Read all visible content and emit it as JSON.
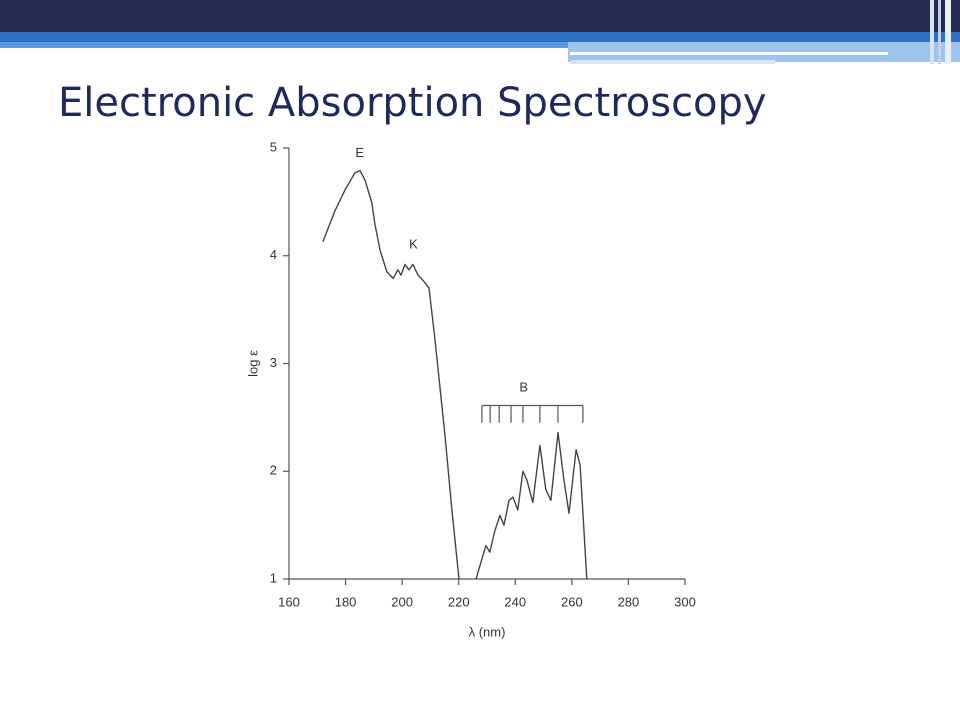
{
  "title": "Electronic Absorption Spectroscopy",
  "chart_data": {
    "type": "line",
    "x_label": "λ (nm)",
    "y_label": "log ε",
    "xlim": [
      160,
      300
    ],
    "xticks": [
      160,
      180,
      200,
      220,
      240,
      260,
      280,
      300
    ],
    "ylim": [
      1,
      5
    ],
    "yticks": [
      1,
      2,
      3,
      4,
      5
    ],
    "series": [
      {
        "color": "#444444",
        "x": [
          172,
          176.3,
          179.8,
          183.3,
          185.1,
          186.9,
          189.3,
          190.4,
          192.2,
          194.6,
          196.8,
          198.5,
          199.6,
          201,
          202.4,
          203.8,
          205.6,
          207.4,
          209.5,
          211.6,
          215.1,
          217.6,
          220.1,
          null,
          226.1,
          228.6,
          229.6,
          231,
          232.8,
          234.6,
          236,
          237.8,
          239.2,
          240.9,
          242.7,
          244.1,
          246.2,
          248.7,
          250.8,
          252.6,
          255.1,
          257.2,
          259,
          261.5,
          262.9,
          265.3
        ],
        "values": [
          4.13,
          4.42,
          4.61,
          4.77,
          4.79,
          4.7,
          4.49,
          4.29,
          4.05,
          3.85,
          3.79,
          3.87,
          3.82,
          3.92,
          3.87,
          3.92,
          3.82,
          3.77,
          3.7,
          3.22,
          2.34,
          1.64,
          1,
          null,
          1,
          1.22,
          1.31,
          1.25,
          1.45,
          1.59,
          1.5,
          1.73,
          1.76,
          1.64,
          2,
          1.92,
          1.71,
          2.24,
          1.83,
          1.73,
          2.36,
          1.92,
          1.61,
          2.2,
          2.06,
          1
        ]
      }
    ],
    "annotations": [
      {
        "text": "E",
        "x": 185,
        "y": 4.95
      },
      {
        "text": "K",
        "x": 204,
        "y": 4.1
      },
      {
        "text": "B",
        "x": 243,
        "y": 2.77,
        "bracket_y": 2.61,
        "bracket_tick_bottom": 2.45,
        "bracket": [
          228.2,
          231.1,
          234.3,
          238.5,
          242.7,
          248.7,
          255.1,
          263.9
        ]
      }
    ]
  }
}
